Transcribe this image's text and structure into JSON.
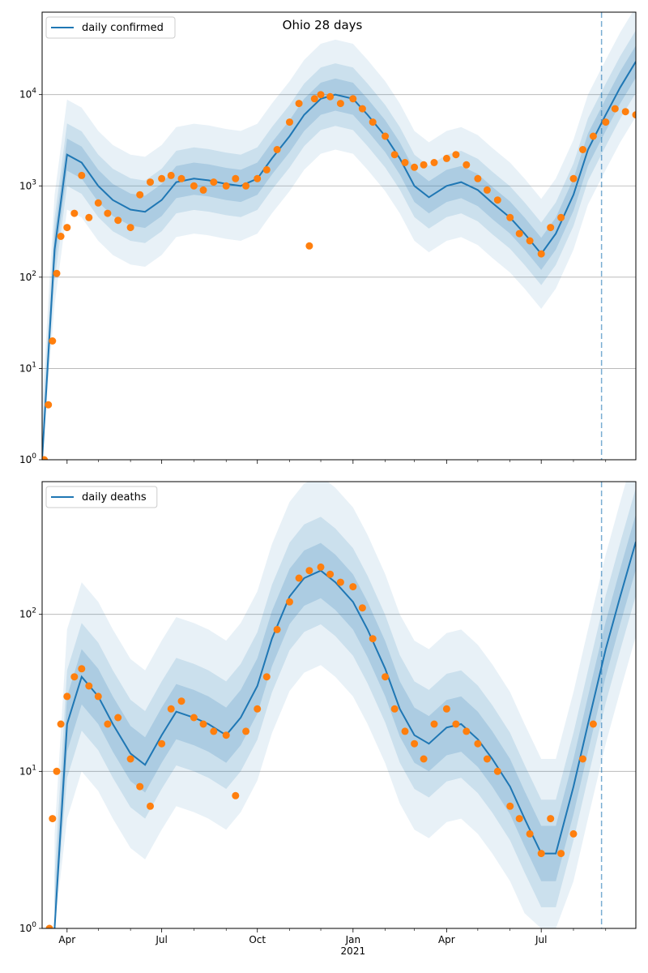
{
  "figure": {
    "title": "Ohio 28 days"
  },
  "chart_data": [
    {
      "type": "line",
      "title": "Ohio 28 days",
      "yscale": "log",
      "ylim": [
        1,
        80000
      ],
      "xlim": [
        "2020-03-08",
        "2021-09-30"
      ],
      "ytick_labels": [
        "10^0",
        "10^1",
        "10^2",
        "10^3",
        "10^4"
      ],
      "xtick_labels": [
        "Apr",
        "Jul",
        "Oct",
        "Jan",
        "2021",
        "Apr",
        "Jul"
      ],
      "grid": "horizontal",
      "legend": {
        "position": "top-left",
        "entries": [
          "daily confirmed"
        ]
      },
      "vline_date": "2021-08-28",
      "series": [
        {
          "name": "daily confirmed",
          "kind": "model",
          "x": [
            "2020-03-08",
            "2020-03-20",
            "2020-04-01",
            "2020-04-15",
            "2020-05-01",
            "2020-05-15",
            "2020-06-01",
            "2020-06-15",
            "2020-07-01",
            "2020-07-15",
            "2020-08-01",
            "2020-08-15",
            "2020-09-01",
            "2020-09-15",
            "2020-10-01",
            "2020-10-15",
            "2020-11-01",
            "2020-11-15",
            "2020-12-01",
            "2020-12-15",
            "2021-01-01",
            "2021-01-15",
            "2021-02-01",
            "2021-02-15",
            "2021-03-01",
            "2021-03-15",
            "2021-04-01",
            "2021-04-15",
            "2021-05-01",
            "2021-05-15",
            "2021-06-01",
            "2021-06-15",
            "2021-07-01",
            "2021-07-15",
            "2021-08-01",
            "2021-08-15",
            "2021-09-01",
            "2021-09-15",
            "2021-09-30"
          ],
          "values": [
            1,
            200,
            2200,
            1800,
            1000,
            700,
            550,
            520,
            700,
            1100,
            1200,
            1150,
            1050,
            1000,
            1200,
            2000,
            3500,
            6000,
            9000,
            10000,
            9000,
            6000,
            3500,
            2000,
            1000,
            750,
            1000,
            1100,
            900,
            650,
            450,
            300,
            180,
            300,
            800,
            2500,
            6000,
            12000,
            23000
          ]
        },
        {
          "name": "observed",
          "kind": "points",
          "x": [
            "2020-03-10",
            "2020-03-14",
            "2020-03-18",
            "2020-03-22",
            "2020-03-26",
            "2020-04-01",
            "2020-04-08",
            "2020-04-15",
            "2020-04-22",
            "2020-05-01",
            "2020-05-10",
            "2020-05-20",
            "2020-06-01",
            "2020-06-10",
            "2020-06-20",
            "2020-07-01",
            "2020-07-10",
            "2020-07-20",
            "2020-08-01",
            "2020-08-10",
            "2020-08-20",
            "2020-09-01",
            "2020-09-10",
            "2020-09-20",
            "2020-10-01",
            "2020-10-10",
            "2020-10-20",
            "2020-11-01",
            "2020-11-10",
            "2020-11-20",
            "2020-11-25",
            "2020-12-01",
            "2020-12-10",
            "2020-12-20",
            "2021-01-01",
            "2021-01-10",
            "2021-01-20",
            "2021-02-01",
            "2021-02-10",
            "2021-02-20",
            "2021-03-01",
            "2021-03-10",
            "2021-03-20",
            "2021-04-01",
            "2021-04-10",
            "2021-04-20",
            "2021-05-01",
            "2021-05-10",
            "2021-05-20",
            "2021-06-01",
            "2021-06-10",
            "2021-06-20",
            "2021-07-01",
            "2021-07-10",
            "2021-07-20",
            "2021-08-01",
            "2021-08-10",
            "2021-08-20",
            "2021-09-01",
            "2021-09-10",
            "2021-09-20",
            "2021-09-30"
          ],
          "values": [
            1,
            4,
            20,
            110,
            280,
            350,
            500,
            1300,
            450,
            650,
            500,
            420,
            350,
            800,
            1100,
            1200,
            1300,
            1200,
            1000,
            900,
            1100,
            1000,
            1200,
            1000,
            1200,
            1500,
            2500,
            5000,
            8000,
            220,
            9000,
            10000,
            9500,
            8000,
            9000,
            7000,
            5000,
            3500,
            2200,
            1800,
            1600,
            1700,
            1800,
            2000,
            2200,
            1700,
            1200,
            900,
            700,
            450,
            300,
            250,
            180,
            350,
            450,
            1200,
            2500,
            3500,
            5000,
            7000,
            6500,
            6000
          ]
        }
      ]
    },
    {
      "type": "line",
      "title": "",
      "yscale": "log",
      "ylim": [
        1,
        700
      ],
      "xlim": [
        "2020-03-08",
        "2021-09-30"
      ],
      "ytick_labels": [
        "10^0",
        "10^1",
        "10^2"
      ],
      "xtick_labels": [
        "Apr",
        "Jul",
        "Oct",
        "Jan",
        "2021",
        "Apr",
        "Jul"
      ],
      "grid": "horizontal",
      "legend": {
        "position": "top-left",
        "entries": [
          "daily deaths"
        ]
      },
      "vline_date": "2021-08-28",
      "series": [
        {
          "name": "daily deaths",
          "kind": "model",
          "x": [
            "2020-03-20",
            "2020-04-01",
            "2020-04-15",
            "2020-05-01",
            "2020-05-15",
            "2020-06-01",
            "2020-06-15",
            "2020-07-01",
            "2020-07-15",
            "2020-08-01",
            "2020-08-15",
            "2020-09-01",
            "2020-09-15",
            "2020-10-01",
            "2020-10-15",
            "2020-11-01",
            "2020-11-15",
            "2020-12-01",
            "2020-12-15",
            "2021-01-01",
            "2021-01-15",
            "2021-02-01",
            "2021-02-15",
            "2021-03-01",
            "2021-03-15",
            "2021-04-01",
            "2021-04-15",
            "2021-05-01",
            "2021-05-15",
            "2021-06-01",
            "2021-06-15",
            "2021-07-01",
            "2021-07-15",
            "2021-08-01",
            "2021-08-15",
            "2021-09-01",
            "2021-09-15",
            "2021-09-30"
          ],
          "values": [
            1,
            20,
            40,
            30,
            20,
            13,
            11,
            17,
            24,
            22,
            20,
            17,
            22,
            35,
            70,
            130,
            170,
            190,
            160,
            120,
            80,
            45,
            25,
            17,
            15,
            19,
            20,
            16,
            12,
            8,
            5,
            3,
            3,
            8,
            20,
            60,
            130,
            290
          ]
        },
        {
          "name": "observed",
          "kind": "points",
          "x": [
            "2020-03-15",
            "2020-03-18",
            "2020-03-22",
            "2020-03-26",
            "2020-04-01",
            "2020-04-08",
            "2020-04-15",
            "2020-04-22",
            "2020-05-01",
            "2020-05-10",
            "2020-05-20",
            "2020-06-01",
            "2020-06-10",
            "2020-06-20",
            "2020-07-01",
            "2020-07-10",
            "2020-07-20",
            "2020-08-01",
            "2020-08-10",
            "2020-08-20",
            "2020-09-01",
            "2020-09-10",
            "2020-09-20",
            "2020-10-01",
            "2020-10-10",
            "2020-10-20",
            "2020-11-01",
            "2020-11-10",
            "2020-11-20",
            "2020-12-01",
            "2020-12-10",
            "2020-12-20",
            "2021-01-01",
            "2021-01-10",
            "2021-01-20",
            "2021-02-01",
            "2021-02-10",
            "2021-02-20",
            "2021-03-01",
            "2021-03-10",
            "2021-03-20",
            "2021-04-01",
            "2021-04-10",
            "2021-04-20",
            "2021-05-01",
            "2021-05-10",
            "2021-05-20",
            "2021-06-01",
            "2021-06-10",
            "2021-06-20",
            "2021-07-01",
            "2021-07-10",
            "2021-07-20",
            "2021-08-01",
            "2021-08-10",
            "2021-08-20"
          ],
          "values": [
            1,
            5,
            10,
            20,
            30,
            40,
            45,
            35,
            30,
            20,
            22,
            12,
            8,
            6,
            15,
            25,
            28,
            22,
            20,
            18,
            17,
            7,
            18,
            25,
            40,
            80,
            120,
            170,
            190,
            200,
            180,
            160,
            150,
            110,
            70,
            40,
            25,
            18,
            15,
            12,
            20,
            25,
            20,
            18,
            15,
            12,
            10,
            6,
            5,
            4,
            3,
            5,
            3,
            4,
            12,
            20
          ]
        }
      ]
    }
  ]
}
